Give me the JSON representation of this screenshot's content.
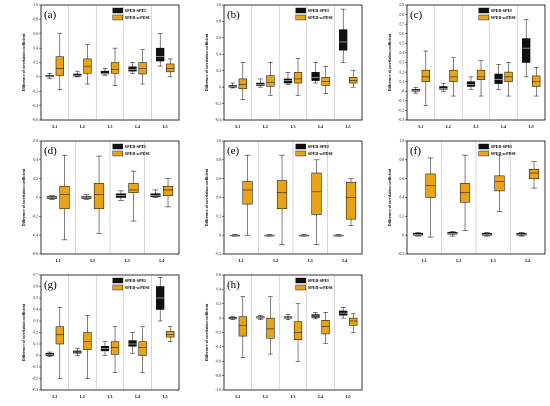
{
  "colors": {
    "spei": "#111111",
    "scpdsi": "#e8a317",
    "outline": "#000000",
    "divider": "#999999",
    "frame": "#000000"
  },
  "chart_data": [
    {
      "type": "box",
      "panel": "(a)",
      "ylabel": "Difference of correlation coefficient",
      "ylim": [
        -0.6,
        1.0
      ],
      "yticks": [
        -0.6,
        -0.4,
        -0.2,
        0,
        0.2,
        0.4,
        0.6,
        0.8,
        1.0
      ],
      "ytick_labels": [
        "-0.6",
        "-0.4",
        "-0.2",
        "0",
        "0.2",
        "0.4",
        "0.6",
        "0.8",
        "1.0"
      ],
      "categories": [
        "L1",
        "L2",
        "L3",
        "L4",
        "L5"
      ],
      "legend": [
        "SPEIl-SPEI",
        "SPEIl-scPDSI"
      ],
      "legend_position": "top-right",
      "series": [
        {
          "name": "SPEIl-SPEI",
          "boxes": [
            [
              -0.02,
              0.0,
              0.01,
              0.02,
              0.05
            ],
            [
              0.0,
              0.01,
              0.02,
              0.04,
              0.08
            ],
            [
              0.02,
              0.04,
              0.05,
              0.08,
              0.12
            ],
            [
              0.05,
              0.08,
              0.1,
              0.14,
              0.2
            ],
            [
              0.15,
              0.22,
              0.28,
              0.4,
              0.6
            ]
          ]
        },
        {
          "name": "SPEIl-scPDSI",
          "boxes": [
            [
              -0.18,
              0.02,
              0.12,
              0.28,
              0.6
            ],
            [
              -0.1,
              0.05,
              0.15,
              0.25,
              0.45
            ],
            [
              -0.12,
              0.05,
              0.1,
              0.2,
              0.4
            ],
            [
              -0.1,
              0.04,
              0.12,
              0.2,
              0.38
            ],
            [
              0.0,
              0.07,
              0.12,
              0.18,
              0.25
            ]
          ]
        }
      ]
    },
    {
      "type": "box",
      "panel": "(b)",
      "ylabel": "Difference of correlation coefficient",
      "ylim": [
        -0.4,
        1.0
      ],
      "yticks": [
        -0.4,
        -0.2,
        0,
        0.2,
        0.4,
        0.6,
        0.8,
        1.0
      ],
      "ytick_labels": [
        "-0.4",
        "-0.2",
        "0",
        "0.2",
        "0.4",
        "0.6",
        "0.8",
        "1.0"
      ],
      "categories": [
        "L1",
        "L2",
        "L3",
        "L4",
        "L5"
      ],
      "legend": [
        "SPEIl-SPEI",
        "SPEIl-scPDSI"
      ],
      "legend_position": "top-right",
      "series": [
        {
          "name": "SPEIl-SPEI",
          "boxes": [
            [
              -0.01,
              0.0,
              0.01,
              0.02,
              0.05
            ],
            [
              0.0,
              0.02,
              0.03,
              0.05,
              0.1
            ],
            [
              0.03,
              0.05,
              0.08,
              0.1,
              0.18
            ],
            [
              0.05,
              0.08,
              0.12,
              0.18,
              0.3
            ],
            [
              0.3,
              0.45,
              0.55,
              0.7,
              0.95
            ]
          ]
        },
        {
          "name": "SPEIl-scPDSI",
          "boxes": [
            [
              -0.15,
              -0.02,
              0.03,
              0.1,
              0.3
            ],
            [
              -0.1,
              0.01,
              0.06,
              0.14,
              0.3
            ],
            [
              -0.1,
              0.05,
              0.1,
              0.18,
              0.35
            ],
            [
              -0.08,
              0.02,
              0.07,
              0.12,
              0.25
            ],
            [
              0.0,
              0.05,
              0.08,
              0.12,
              0.2
            ]
          ]
        }
      ]
    },
    {
      "type": "box",
      "panel": "(c)",
      "ylabel": "Difference of correlation coefficient",
      "ylim": [
        -0.3,
        0.9
      ],
      "yticks": [
        -0.3,
        -0.2,
        -0.1,
        0,
        0.1,
        0.2,
        0.3,
        0.4,
        0.5,
        0.6,
        0.7,
        0.8,
        0.9
      ],
      "ytick_labels": [
        "-0.3",
        "-0.2",
        "-0.1",
        "0",
        "0.1",
        "0.2",
        "0.3",
        "0.4",
        "0.5",
        "0.6",
        "0.7",
        "0.8",
        "0.9"
      ],
      "categories": [
        "L1",
        "L2",
        "L3",
        "L4",
        "L5"
      ],
      "legend": [
        "SPEIl-SPEI",
        "SPEIl-scPDSI"
      ],
      "legend_position": "top-right",
      "series": [
        {
          "name": "SPEIl-SPEI",
          "boxes": [
            [
              -0.02,
              0.0,
              0.01,
              0.02,
              0.04
            ],
            [
              0.0,
              0.02,
              0.03,
              0.05,
              0.08
            ],
            [
              0.02,
              0.05,
              0.07,
              0.1,
              0.15
            ],
            [
              0.02,
              0.08,
              0.12,
              0.18,
              0.28
            ],
            [
              0.15,
              0.3,
              0.45,
              0.55,
              0.75
            ]
          ]
        },
        {
          "name": "SPEIl-scPDSI",
          "boxes": [
            [
              -0.15,
              0.1,
              0.15,
              0.22,
              0.42
            ],
            [
              -0.05,
              0.1,
              0.15,
              0.22,
              0.35
            ],
            [
              -0.05,
              0.12,
              0.15,
              0.22,
              0.32
            ],
            [
              -0.05,
              0.1,
              0.15,
              0.2,
              0.3
            ],
            [
              -0.05,
              0.05,
              0.1,
              0.16,
              0.25
            ]
          ]
        }
      ]
    },
    {
      "type": "box",
      "panel": "(d)",
      "ylabel": "Difference of correlation coefficient",
      "ylim": [
        -0.6,
        0.6
      ],
      "yticks": [
        -0.6,
        -0.4,
        -0.2,
        0,
        0.2,
        0.4,
        0.6
      ],
      "ytick_labels": [
        "-0.6",
        "-0.4",
        "-0.2",
        "0",
        "0.2",
        "0.4",
        "0.6"
      ],
      "categories": [
        "L1",
        "L2",
        "L3",
        "L4"
      ],
      "legend": [
        "SPEIl-SPEI",
        "SPEIl-scPDSI"
      ],
      "legend_position": "top-right",
      "series": [
        {
          "name": "SPEIl-SPEI",
          "boxes": [
            [
              -0.02,
              -0.01,
              0.0,
              0.01,
              0.02
            ],
            [
              -0.02,
              -0.01,
              0.0,
              0.01,
              0.03
            ],
            [
              -0.03,
              0.0,
              0.02,
              0.04,
              0.07
            ],
            [
              0.0,
              0.01,
              0.02,
              0.04,
              0.08
            ]
          ]
        },
        {
          "name": "SPEIl-scPDSI",
          "boxes": [
            [
              -0.45,
              -0.12,
              0.03,
              0.12,
              0.45
            ],
            [
              -0.38,
              -0.12,
              0.03,
              0.15,
              0.44
            ],
            [
              -0.25,
              0.05,
              0.08,
              0.15,
              0.28
            ],
            [
              -0.1,
              0.02,
              0.08,
              0.12,
              0.2
            ]
          ]
        }
      ]
    },
    {
      "type": "box",
      "panel": "(e)",
      "ylabel": "Difference of correlation coefficient",
      "ylim": [
        -0.2,
        1.0
      ],
      "yticks": [
        -0.2,
        0,
        0.2,
        0.4,
        0.6,
        0.8,
        1.0
      ],
      "ytick_labels": [
        "-0.2",
        "0",
        "0.2",
        "0.4",
        "0.6",
        "0.8",
        "1.0"
      ],
      "categories": [
        "L1",
        "L2",
        "L3",
        "L4"
      ],
      "legend": [
        "SPEIl-SPEI",
        "SPEIl-scPDSI"
      ],
      "legend_position": "top-right",
      "series": [
        {
          "name": "SPEIl-SPEI",
          "boxes": [
            [
              -0.01,
              0.0,
              0.0,
              0.0,
              0.01
            ],
            [
              -0.01,
              0.0,
              0.0,
              0.0,
              0.01
            ],
            [
              -0.01,
              0.0,
              0.0,
              0.0,
              0.01
            ],
            [
              -0.01,
              0.0,
              0.0,
              0.0,
              0.01
            ]
          ]
        },
        {
          "name": "SPEIl-scPDSI",
          "boxes": [
            [
              0.0,
              0.33,
              0.48,
              0.57,
              0.85
            ],
            [
              -0.1,
              0.28,
              0.45,
              0.58,
              0.85
            ],
            [
              -0.1,
              0.22,
              0.46,
              0.66,
              0.8
            ],
            [
              0.1,
              0.17,
              0.4,
              0.56,
              0.6
            ]
          ]
        }
      ]
    },
    {
      "type": "box",
      "panel": "(f)",
      "ylabel": "Difference of correlation coefficient",
      "ylim": [
        -0.2,
        1.0
      ],
      "yticks": [
        -0.2,
        0,
        0.2,
        0.4,
        0.6,
        0.8,
        1.0
      ],
      "ytick_labels": [
        "-0.2",
        "0",
        "0.2",
        "0.4",
        "0.6",
        "0.8",
        "1.0"
      ],
      "categories": [
        "L1",
        "L2",
        "L3",
        "L4"
      ],
      "legend": [
        "SPEIl-SPEI",
        "SPEIl-scPDSI"
      ],
      "legend_position": "top-right",
      "series": [
        {
          "name": "SPEIl-SPEI",
          "boxes": [
            [
              -0.01,
              0.0,
              0.01,
              0.02,
              0.03
            ],
            [
              -0.01,
              0.01,
              0.02,
              0.03,
              0.04
            ],
            [
              -0.01,
              0.0,
              0.01,
              0.02,
              0.03
            ],
            [
              -0.01,
              0.0,
              0.01,
              0.02,
              0.03
            ]
          ]
        },
        {
          "name": "SPEIl-scPDSI",
          "boxes": [
            [
              -0.02,
              0.4,
              0.53,
              0.65,
              0.82
            ],
            [
              0.05,
              0.35,
              0.45,
              0.55,
              0.85
            ],
            [
              0.25,
              0.47,
              0.57,
              0.63,
              0.85
            ],
            [
              0.5,
              0.6,
              0.66,
              0.7,
              0.78
            ]
          ]
        }
      ]
    },
    {
      "type": "box",
      "panel": "(g)",
      "ylabel": "Difference of correlation coefficient",
      "ylim": [
        -0.3,
        0.7
      ],
      "yticks": [
        -0.3,
        -0.2,
        -0.1,
        0,
        0.1,
        0.2,
        0.3,
        0.4,
        0.5,
        0.6,
        0.7
      ],
      "ytick_labels": [
        "-0.3",
        "-0.2",
        "-0.1",
        "0",
        "0.1",
        "0.2",
        "0.3",
        "0.4",
        "0.5",
        "0.6",
        "0.7"
      ],
      "categories": [
        "L1",
        "L2",
        "L3",
        "L4",
        "L5"
      ],
      "legend": [
        "SPEIl-SPEI",
        "SPEIl-scPDSI"
      ],
      "legend_position": "top-right",
      "series": [
        {
          "name": "SPEIl-SPEI",
          "boxes": [
            [
              -0.01,
              0.0,
              0.01,
              0.02,
              0.03
            ],
            [
              0.0,
              0.02,
              0.03,
              0.04,
              0.06
            ],
            [
              0.0,
              0.04,
              0.06,
              0.08,
              0.12
            ],
            [
              0.02,
              0.08,
              0.1,
              0.13,
              0.2
            ],
            [
              0.3,
              0.4,
              0.5,
              0.6,
              0.68
            ]
          ]
        },
        {
          "name": "SPEIl-scPDSI",
          "boxes": [
            [
              -0.2,
              0.1,
              0.18,
              0.25,
              0.42
            ],
            [
              -0.2,
              0.05,
              0.12,
              0.2,
              0.35
            ],
            [
              -0.15,
              0.01,
              0.07,
              0.12,
              0.25
            ],
            [
              -0.15,
              0.0,
              0.07,
              0.12,
              0.25
            ],
            [
              0.12,
              0.16,
              0.18,
              0.21,
              0.25
            ]
          ]
        }
      ]
    },
    {
      "type": "box",
      "panel": "(h)",
      "ylabel": "Difference of correlation coefficient",
      "ylim": [
        -1.0,
        0.6
      ],
      "yticks": [
        -1.0,
        -0.8,
        -0.6,
        -0.4,
        -0.2,
        0,
        0.2,
        0.4,
        0.6
      ],
      "ytick_labels": [
        "-1.0",
        "-0.8",
        "-0.6",
        "-0.4",
        "-0.2",
        "0",
        "0.2",
        "0.4",
        "0.6"
      ],
      "categories": [
        "L1",
        "L2",
        "L3",
        "L4",
        "L5"
      ],
      "legend": [
        "SPEIl-SPEI",
        "SPEIl-scPDSI"
      ],
      "legend_position": "top-right",
      "series": [
        {
          "name": "SPEIl-SPEI",
          "boxes": [
            [
              -0.02,
              -0.01,
              0.0,
              0.01,
              0.02
            ],
            [
              -0.02,
              0.0,
              0.01,
              0.02,
              0.04
            ],
            [
              -0.02,
              0.0,
              0.01,
              0.02,
              0.05
            ],
            [
              -0.01,
              0.01,
              0.03,
              0.05,
              0.08
            ],
            [
              0.0,
              0.04,
              0.07,
              0.1,
              0.15
            ]
          ]
        },
        {
          "name": "SPEIl-scPDSI",
          "boxes": [
            [
              -0.55,
              -0.25,
              -0.1,
              0.02,
              0.3
            ],
            [
              -0.5,
              -0.28,
              -0.15,
              0.0,
              0.3
            ],
            [
              -0.6,
              -0.3,
              -0.2,
              -0.05,
              0.2
            ],
            [
              -0.35,
              -0.22,
              -0.12,
              -0.03,
              0.08
            ],
            [
              -0.2,
              -0.1,
              -0.04,
              0.0,
              0.06
            ]
          ]
        }
      ]
    }
  ]
}
